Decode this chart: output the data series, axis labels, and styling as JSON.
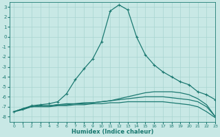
{
  "xlabel": "Humidex (Indice chaleur)",
  "bg_color": "#c8e8e5",
  "grid_color": "#a8d4d0",
  "line_color": "#1a7870",
  "xlim": [
    -0.5,
    23
  ],
  "ylim": [
    -8.5,
    3.5
  ],
  "yticks": [
    3,
    2,
    1,
    0,
    -1,
    -2,
    -3,
    -4,
    -5,
    -6,
    -7,
    -8
  ],
  "xticks": [
    0,
    1,
    2,
    3,
    4,
    5,
    6,
    7,
    8,
    9,
    10,
    11,
    12,
    13,
    14,
    15,
    16,
    17,
    18,
    19,
    20,
    21,
    22,
    23
  ],
  "series": [
    {
      "x": [
        0,
        1,
        2,
        3,
        4,
        5,
        6,
        7,
        8,
        9,
        10,
        11,
        12,
        13,
        14,
        15,
        16,
        17,
        18,
        19,
        20,
        21,
        22,
        23
      ],
      "y": [
        -7.5,
        -7.2,
        -6.9,
        -6.8,
        -6.7,
        -6.5,
        -5.7,
        -4.3,
        -3.2,
        -2.2,
        -0.5,
        2.6,
        3.2,
        2.7,
        0.0,
        -1.8,
        -2.8,
        -3.5,
        -4.0,
        -4.5,
        -4.8,
        -5.5,
        -5.8,
        -6.3
      ],
      "marker": "+"
    },
    {
      "x": [
        0,
        1,
        2,
        3,
        4,
        5,
        6,
        7,
        8,
        9,
        10,
        11,
        12,
        13,
        14,
        15,
        16,
        17,
        18,
        19,
        20,
        21,
        22,
        23
      ],
      "y": [
        -7.5,
        -7.2,
        -7.0,
        -6.9,
        -6.9,
        -6.8,
        -6.8,
        -6.7,
        -6.7,
        -6.6,
        -6.5,
        -6.4,
        -6.2,
        -6.0,
        -5.8,
        -5.6,
        -5.5,
        -5.5,
        -5.5,
        -5.6,
        -5.8,
        -6.2,
        -6.8,
        -8.0
      ],
      "marker": null
    },
    {
      "x": [
        0,
        1,
        2,
        3,
        4,
        5,
        6,
        7,
        8,
        9,
        10,
        11,
        12,
        13,
        14,
        15,
        16,
        17,
        18,
        19,
        20,
        21,
        22,
        23
      ],
      "y": [
        -7.5,
        -7.2,
        -7.0,
        -6.9,
        -6.9,
        -6.8,
        -6.7,
        -6.7,
        -6.6,
        -6.6,
        -6.5,
        -6.4,
        -6.3,
        -6.2,
        -6.1,
        -6.0,
        -6.0,
        -6.0,
        -6.1,
        -6.2,
        -6.3,
        -6.5,
        -7.0,
        -8.0
      ],
      "marker": null
    },
    {
      "x": [
        0,
        1,
        2,
        3,
        4,
        5,
        6,
        7,
        8,
        9,
        10,
        11,
        12,
        13,
        14,
        15,
        16,
        17,
        18,
        19,
        20,
        21,
        22,
        23
      ],
      "y": [
        -7.5,
        -7.3,
        -7.0,
        -7.0,
        -7.0,
        -6.9,
        -6.9,
        -6.8,
        -6.8,
        -6.7,
        -6.7,
        -6.6,
        -6.6,
        -6.5,
        -6.5,
        -6.5,
        -6.5,
        -6.5,
        -6.6,
        -6.7,
        -6.8,
        -7.0,
        -7.5,
        -8.1
      ],
      "marker": null
    }
  ]
}
